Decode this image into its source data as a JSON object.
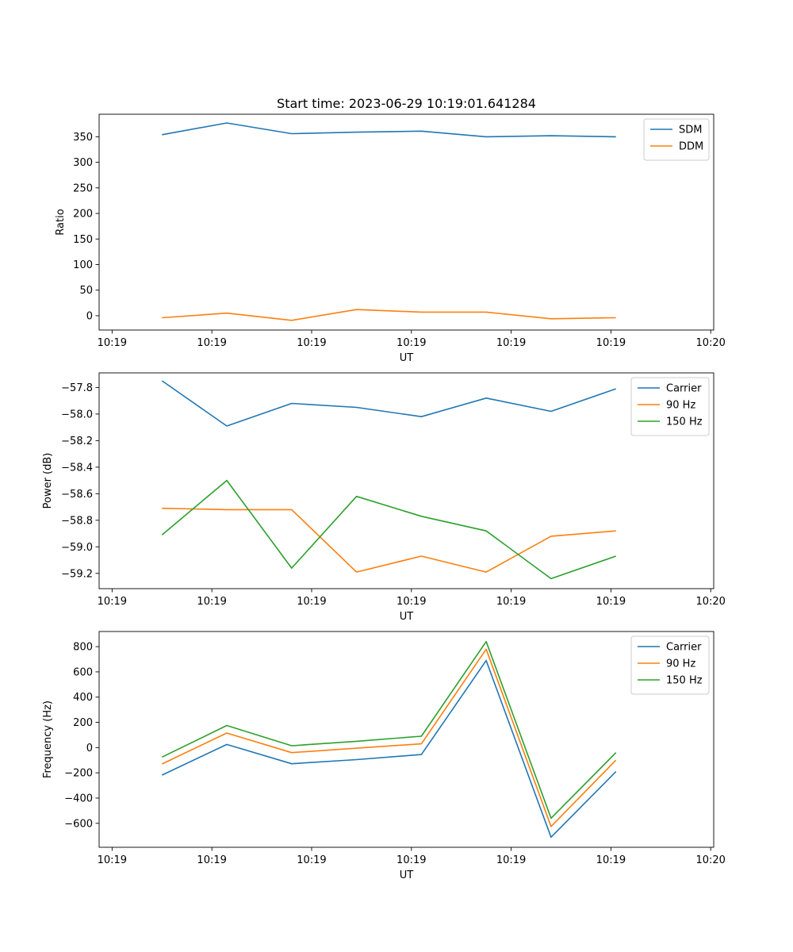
{
  "figure": {
    "title": "Start time: 2023-06-29 10:19:01.641284"
  },
  "chart_data": [
    {
      "type": "line",
      "title": "Start time: 2023-06-29 10:19:01.641284",
      "xlabel": "UT",
      "ylabel": "Ratio",
      "x": [
        0.5,
        1.15,
        1.8,
        2.45,
        3.1,
        3.75,
        4.4,
        5.05
      ],
      "xlim": [
        -0.13,
        6.03
      ],
      "xticks": [
        0,
        1,
        2,
        3,
        4,
        5,
        6
      ],
      "xtick_labels": [
        "10:19",
        "10:19",
        "10:19",
        "10:19",
        "10:19",
        "10:19",
        "10:20"
      ],
      "ylim": [
        -28,
        394
      ],
      "yticks": [
        0,
        50,
        100,
        150,
        200,
        250,
        300,
        350
      ],
      "series": [
        {
          "name": "SDM",
          "color": "#1f77b4",
          "values": [
            354,
            377,
            356,
            359,
            361,
            350,
            352,
            350
          ]
        },
        {
          "name": "DDM",
          "color": "#ff7f0e",
          "values": [
            -4,
            5,
            -9,
            12,
            7,
            7,
            -6,
            -4
          ]
        }
      ],
      "legend": "upper right",
      "grid": false
    },
    {
      "type": "line",
      "title": "",
      "xlabel": "UT",
      "ylabel": "Power (dB)",
      "x": [
        0.5,
        1.15,
        1.8,
        2.45,
        3.1,
        3.75,
        4.4,
        5.05
      ],
      "xlim": [
        -0.13,
        6.03
      ],
      "xticks": [
        0,
        1,
        2,
        3,
        4,
        5,
        6
      ],
      "xtick_labels": [
        "10:19",
        "10:19",
        "10:19",
        "10:19",
        "10:19",
        "10:19",
        "10:20"
      ],
      "ylim": [
        -59.315,
        -57.69
      ],
      "yticks": [
        -57.8,
        -58.0,
        -58.2,
        -58.4,
        -58.6,
        -58.8,
        -59.0,
        -59.2
      ],
      "ytick_labels": [
        "−57.8",
        "−58.0",
        "−58.2",
        "−58.4",
        "−58.6",
        "−58.8",
        "−59.0",
        "−59.2"
      ],
      "series": [
        {
          "name": "Carrier",
          "color": "#1f77b4",
          "values": [
            -57.75,
            -58.09,
            -57.92,
            -57.95,
            -58.02,
            -57.88,
            -57.98,
            -57.81
          ]
        },
        {
          "name": "90 Hz",
          "color": "#ff7f0e",
          "values": [
            -58.71,
            -58.72,
            -58.72,
            -59.19,
            -59.07,
            -59.19,
            -58.92,
            -58.88
          ]
        },
        {
          "name": "150 Hz",
          "color": "#2ca02c",
          "values": [
            -58.91,
            -58.5,
            -59.16,
            -58.62,
            -58.77,
            -58.88,
            -59.24,
            -59.07
          ]
        }
      ],
      "legend": "upper right",
      "grid": false
    },
    {
      "type": "line",
      "title": "",
      "xlabel": "UT",
      "ylabel": "Frequency (Hz)",
      "x": [
        0.5,
        1.15,
        1.8,
        2.45,
        3.1,
        3.75,
        4.4,
        5.05
      ],
      "xlim": [
        -0.13,
        6.03
      ],
      "xticks": [
        0,
        1,
        2,
        3,
        4,
        5,
        6
      ],
      "xtick_labels": [
        "10:19",
        "10:19",
        "10:19",
        "10:19",
        "10:19",
        "10:19",
        "10:20"
      ],
      "ylim": [
        -790,
        920
      ],
      "yticks": [
        800,
        600,
        400,
        200,
        0,
        -200,
        -400,
        -600
      ],
      "ytick_labels": [
        "800",
        "600",
        "400",
        "200",
        "0",
        "−200",
        "−400",
        "−600"
      ],
      "series": [
        {
          "name": "Carrier",
          "color": "#1f77b4",
          "values": [
            -218,
            25,
            -128,
            -95,
            -55,
            690,
            -710,
            -190
          ]
        },
        {
          "name": "90 Hz",
          "color": "#ff7f0e",
          "values": [
            -130,
            115,
            -40,
            -5,
            30,
            780,
            -625,
            -100
          ]
        },
        {
          "name": "150 Hz",
          "color": "#2ca02c",
          "values": [
            -75,
            175,
            15,
            50,
            90,
            840,
            -560,
            -40
          ]
        }
      ],
      "legend": "upper right",
      "grid": false
    }
  ]
}
